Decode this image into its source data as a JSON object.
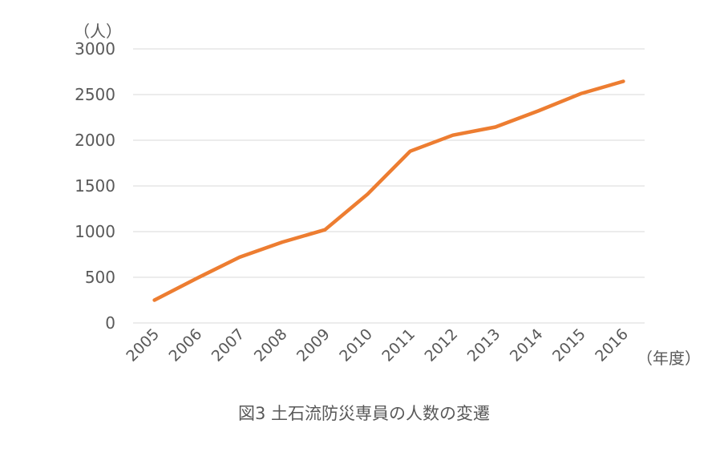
{
  "chart_data": {
    "type": "line",
    "title": "図3 土石流防災専員の人数の変遷",
    "xlabel": "（年度）",
    "ylabel": "（人）",
    "categories": [
      "2005",
      "2006",
      "2007",
      "2008",
      "2009",
      "2010",
      "2011",
      "2012",
      "2013",
      "2014",
      "2015",
      "2016"
    ],
    "series": [
      {
        "values": [
          250,
          490,
          720,
          885,
          1020,
          1410,
          1880,
          2055,
          2145,
          2320,
          2510,
          2645
        ]
      }
    ],
    "ylim": [
      0,
      3000
    ],
    "yticks": [
      0,
      500,
      1000,
      1500,
      2000,
      2500,
      3000
    ],
    "grid": true,
    "line_color": "#ED7D31",
    "grid_color": "#D9D9D9",
    "text_color": "#595959"
  }
}
